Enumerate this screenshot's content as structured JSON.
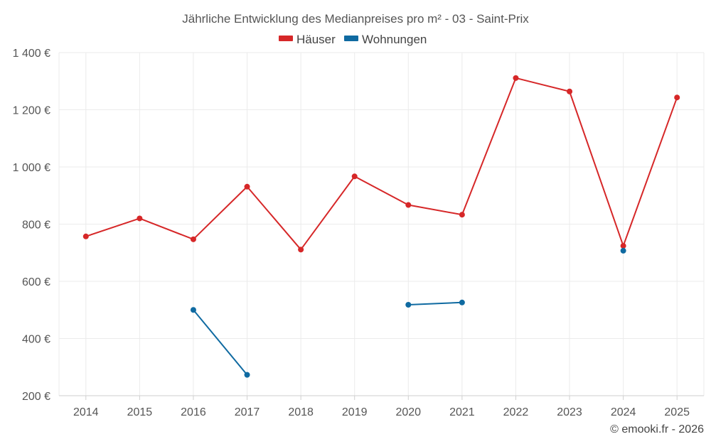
{
  "chart_data": {
    "type": "line",
    "title": "Jährliche Entwicklung des Medianpreises pro m² - 03 - Saint-Prix",
    "categories": [
      "2014",
      "2015",
      "2016",
      "2017",
      "2018",
      "2019",
      "2020",
      "2021",
      "2022",
      "2023",
      "2024",
      "2025"
    ],
    "ylim": [
      200,
      1400
    ],
    "yticks": [
      200,
      400,
      600,
      800,
      1000,
      1200,
      1400
    ],
    "yticklabels": [
      "200 €",
      "400 €",
      "600 €",
      "800 €",
      "1 000 €",
      "1 200 €",
      "1 400 €"
    ],
    "grid": true,
    "legend_position": "top-center",
    "series": [
      {
        "name": "Häuser",
        "color": "#d62728",
        "values": [
          757,
          820,
          747,
          931,
          711,
          967,
          867,
          833,
          1311,
          1264,
          724,
          1243
        ]
      },
      {
        "name": "Wohnungen",
        "color": "#0f6aa1",
        "values": [
          null,
          null,
          500,
          273,
          null,
          null,
          518,
          526,
          null,
          null,
          707,
          null
        ]
      }
    ]
  },
  "credit": "© emooki.fr - 2026"
}
